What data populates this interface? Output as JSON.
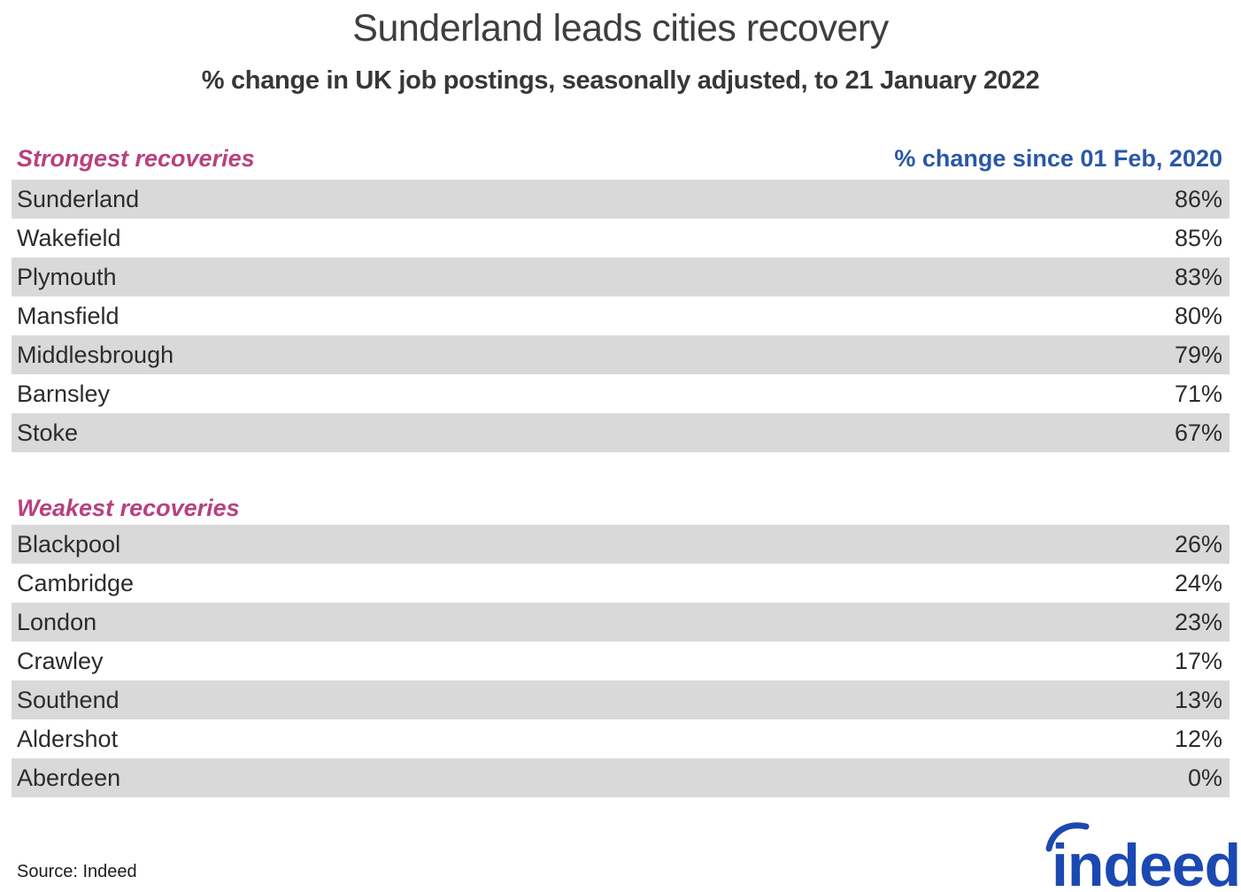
{
  "chart_data": {
    "type": "table",
    "title": "Sunderland leads cities recovery",
    "subtitle": "% change in UK job postings, seasonally adjusted, to 21 January 2022",
    "value_column_label": "% change since 01 Feb, 2020",
    "unit": "%",
    "grid": false,
    "legend_position": "none",
    "groups": [
      {
        "name": "Strongest recoveries",
        "categories": [
          "Sunderland",
          "Wakefield",
          "Plymouth",
          "Mansfield",
          "Middlesbrough",
          "Barnsley",
          "Stoke"
        ],
        "values": [
          86,
          85,
          83,
          80,
          79,
          71,
          67
        ]
      },
      {
        "name": "Weakest recoveries",
        "categories": [
          "Blackpool",
          "Cambridge",
          "London",
          "Crawley",
          "Southend",
          "Aldershot",
          "Aberdeen"
        ],
        "values": [
          26,
          24,
          23,
          17,
          13,
          12,
          0
        ]
      }
    ],
    "source": "Source: Indeed"
  },
  "branding": {
    "logo_text": "indeed"
  },
  "colors": {
    "accent_pink": "#b8417f",
    "header_blue": "#2a57a6",
    "stripe_gray": "#d9d9d9",
    "logo_blue": "#1b49b2",
    "text_dark": "#2c2c2c"
  }
}
